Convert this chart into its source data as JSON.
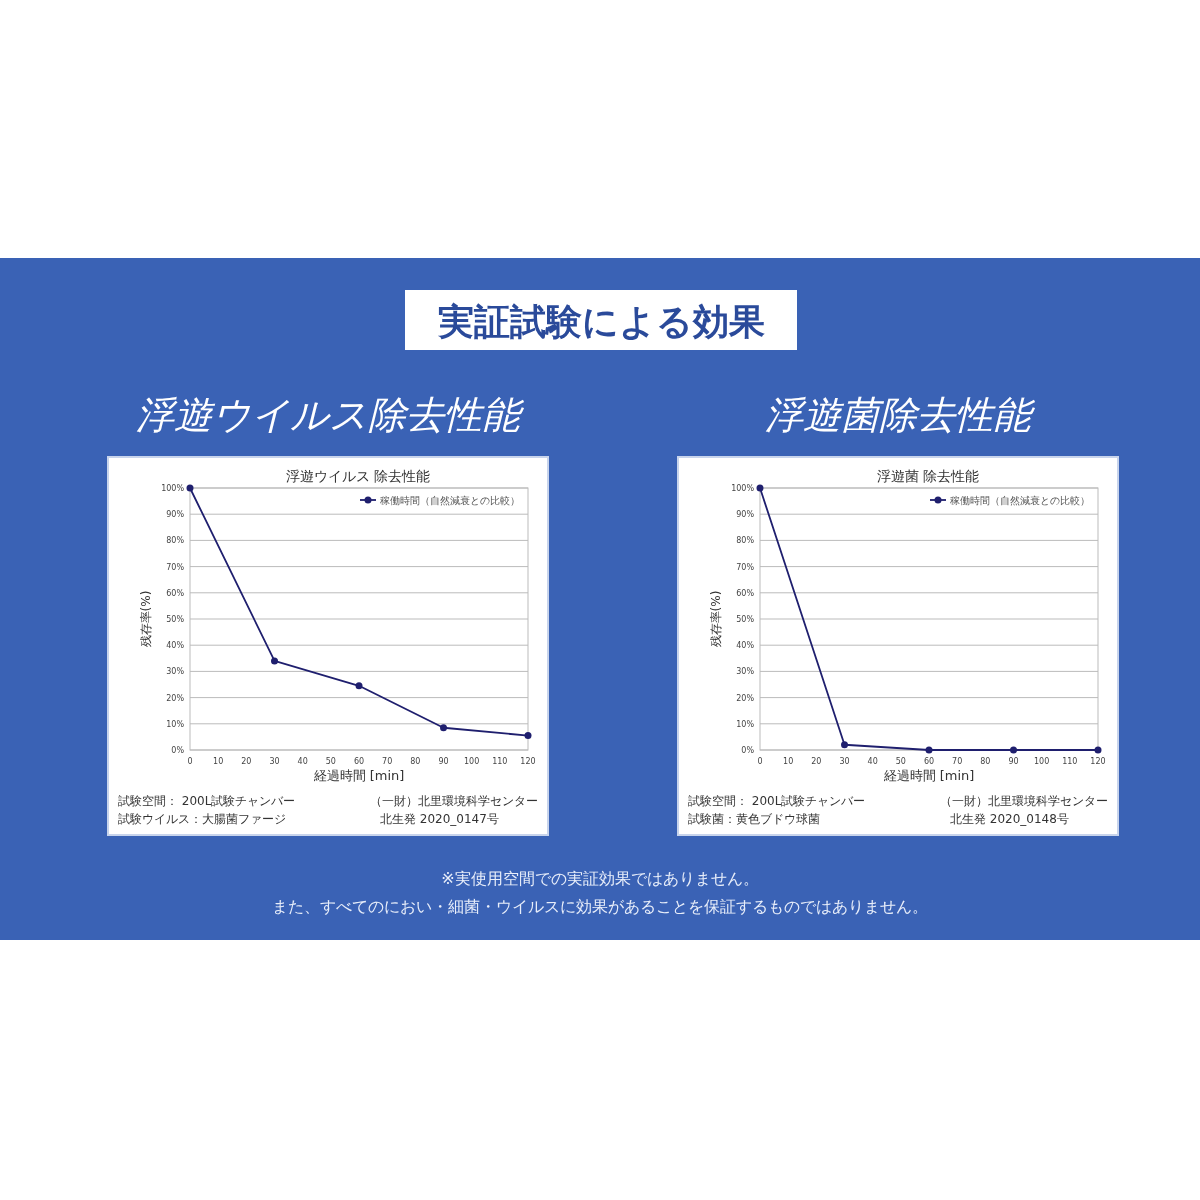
{
  "chart_data": [
    {
      "type": "line",
      "title": "浮遊ウイルス 除去性能",
      "subtitle": "浮遊ウイルス除去性能",
      "xlabel": "経過時間 [min]",
      "ylabel": "残存率(%)",
      "x": [
        0,
        30,
        60,
        90,
        120
      ],
      "series": [
        {
          "name": "稼働時間（自然減衰との比較）",
          "color": "#1f1f6e",
          "values": [
            100,
            34,
            24.5,
            8.5,
            5.5
          ]
        }
      ],
      "xlim": [
        0,
        120
      ],
      "xticks": [
        0,
        10,
        20,
        30,
        40,
        50,
        60,
        70,
        80,
        90,
        100,
        110,
        120
      ],
      "ylim": [
        0,
        100
      ],
      "yticks": [
        {
          "value": 0,
          "label": "0%"
        },
        {
          "value": 10,
          "label": "10%"
        },
        {
          "value": 20,
          "label": "20%"
        },
        {
          "value": 30,
          "label": "30%"
        },
        {
          "value": 40,
          "label": "40%"
        },
        {
          "value": 50,
          "label": "50%"
        },
        {
          "value": 60,
          "label": "60%"
        },
        {
          "value": 70,
          "label": "70%"
        },
        {
          "value": 80,
          "label": "80%"
        },
        {
          "value": 90,
          "label": "90%"
        },
        {
          "value": 100,
          "label": "100%"
        }
      ],
      "grid": "y",
      "legend": "top right",
      "marker": "circle",
      "annotations": [
        "実証試験による効果",
        "※実使用空間での実証効果ではありません。",
        "また、すべてのにおい・細菌・ウイルスに効果があることを保証するものではありません。",
        "試験空間： 200L試験チャンバー",
        "試験ウイルス：大腸菌ファージ",
        "（一財）北里環境科学センター",
        "北生発 2020_0147号"
      ]
    },
    {
      "type": "line",
      "title": "浮遊菌 除去性能",
      "subtitle": "浮遊菌除去性能",
      "xlabel": "経過時間 [min]",
      "ylabel": "残存率(%)",
      "x": [
        0,
        30,
        60,
        90,
        120
      ],
      "series": [
        {
          "name": "稼働時間（自然減衰との比較）",
          "color": "#1f1f6e",
          "values": [
            100,
            2,
            0,
            0,
            0
          ]
        }
      ],
      "xlim": [
        0,
        120
      ],
      "xticks": [
        0,
        10,
        20,
        30,
        40,
        50,
        60,
        70,
        80,
        90,
        100,
        110,
        120
      ],
      "ylim": [
        0,
        100
      ],
      "yticks": [
        {
          "value": 0,
          "label": "0%"
        },
        {
          "value": 10,
          "label": "10%"
        },
        {
          "value": 20,
          "label": "20%"
        },
        {
          "value": 30,
          "label": "30%"
        },
        {
          "value": 40,
          "label": "40%"
        },
        {
          "value": 50,
          "label": "50%"
        },
        {
          "value": 60,
          "label": "60%"
        },
        {
          "value": 70,
          "label": "70%"
        },
        {
          "value": 80,
          "label": "80%"
        },
        {
          "value": 90,
          "label": "90%"
        },
        {
          "value": 100,
          "label": "100%"
        }
      ],
      "grid": "y",
      "legend": "top right",
      "marker": "circle",
      "annotations": [
        "試験空間： 200L試験チャンバー",
        "試験菌：黄色ブドウ球菌",
        "（一財）北里環境科学センター",
        "北生発 2020_0148号"
      ]
    }
  ]
}
